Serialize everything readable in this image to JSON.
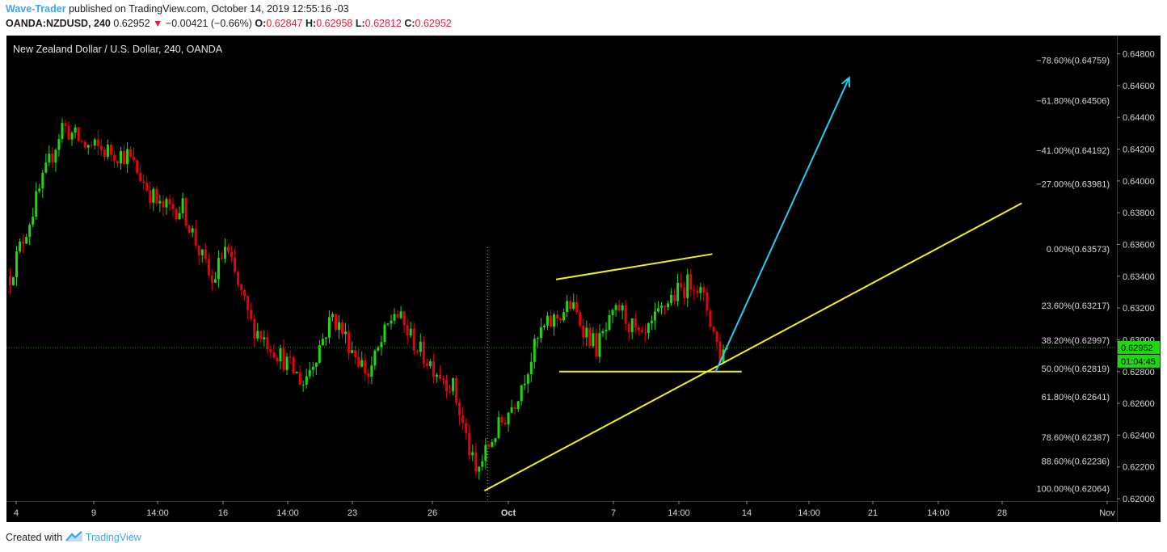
{
  "header": {
    "author": "Wave-Trader",
    "published_text": "published on TradingView.com, October 14, 2019 12:55:16 -03",
    "symbol": "OANDA:NZDUSD, 240",
    "last": "0.62952",
    "change": "−0.00421 (−0.66%)",
    "open_label": "O:",
    "open": "0.62847",
    "high_label": "H:",
    "high": "0.62958",
    "low_label": "L:",
    "low": "0.62812",
    "close_label": "C:",
    "close": "0.62952"
  },
  "footer": {
    "created_with": "Created with",
    "brand": "TradingView"
  },
  "colors": {
    "background": "#000000",
    "up": "#1ed80f",
    "down": "#e8000c",
    "trendline": "#f2f21a",
    "arrow": "#27cdf0",
    "price_line": "#0e9c0e",
    "axis_text": "#d8d8d8",
    "price_tag": "#1ed80f"
  },
  "chart_data": {
    "type": "candlestick",
    "title": "New Zealand Dollar / U.S. Dollar, 240, OANDA",
    "ylim": [
      0.61985,
      0.64915
    ],
    "y_ticks": [
      0.62,
      0.622,
      0.624,
      0.626,
      0.628,
      0.63,
      0.632,
      0.634,
      0.636,
      0.638,
      0.64,
      0.642,
      0.644,
      0.646,
      0.648
    ],
    "y_tick_labels": [
      "0.62000",
      "0.62200",
      "0.62400",
      "0.62600",
      "0.62800",
      "0.63000",
      "0.63200",
      "0.63400",
      "0.63600",
      "0.63800",
      "0.64000",
      "0.64200",
      "0.64400",
      "0.64600",
      "0.64800"
    ],
    "x_tick_labels": [
      "4",
      "9",
      "14:00",
      "16",
      "14:00",
      "23",
      "26",
      "Oct",
      "7",
      "14:00",
      "14",
      "14:00",
      "21",
      "14:00",
      "28",
      "Nov"
    ],
    "fib_levels": [
      {
        "label": "−78.60%(0.64759)",
        "price": 0.64759
      },
      {
        "label": "−61.80%(0.64506)",
        "price": 0.64506
      },
      {
        "label": "−41.00%(0.64192)",
        "price": 0.64192
      },
      {
        "label": "−27.00%(0.63981)",
        "price": 0.63981
      },
      {
        "label": "0.00%(0.63573)",
        "price": 0.63573
      },
      {
        "label": "23.60%(0.63217)",
        "price": 0.63217
      },
      {
        "label": "38.20%(0.62997)",
        "price": 0.62997
      },
      {
        "label": "50.00%(0.62819)",
        "price": 0.62819
      },
      {
        "label": "61.80%(0.62641)",
        "price": 0.62641
      },
      {
        "label": "78.60%(0.62387)",
        "price": 0.62387
      },
      {
        "label": "88.60%(0.62236)",
        "price": 0.62236
      },
      {
        "label": "100.00%(0.62064)",
        "price": 0.62064
      }
    ],
    "current_price": "0.62952",
    "countdown": "01:04:45",
    "anchors": [
      {
        "bar": 0,
        "price": 0.634
      },
      {
        "bar": 16,
        "price": 0.6435
      },
      {
        "bar": 23,
        "price": 0.6422
      },
      {
        "bar": 36,
        "price": 0.6416
      },
      {
        "bar": 46,
        "price": 0.6383
      },
      {
        "bar": 53,
        "price": 0.6383
      },
      {
        "bar": 62,
        "price": 0.6335
      },
      {
        "bar": 66,
        "price": 0.6358
      },
      {
        "bar": 74,
        "price": 0.631
      },
      {
        "bar": 83,
        "price": 0.629
      },
      {
        "bar": 90,
        "price": 0.6273
      },
      {
        "bar": 99,
        "price": 0.6315
      },
      {
        "bar": 110,
        "price": 0.6278
      },
      {
        "bar": 118,
        "price": 0.6318
      },
      {
        "bar": 126,
        "price": 0.6292
      },
      {
        "bar": 136,
        "price": 0.627
      },
      {
        "bar": 143,
        "price": 0.6215
      },
      {
        "bar": 148,
        "price": 0.6238
      },
      {
        "bar": 155,
        "price": 0.6262
      },
      {
        "bar": 163,
        "price": 0.6305
      },
      {
        "bar": 172,
        "price": 0.6322
      },
      {
        "bar": 180,
        "price": 0.6295
      },
      {
        "bar": 187,
        "price": 0.632
      },
      {
        "bar": 194,
        "price": 0.6298
      },
      {
        "bar": 202,
        "price": 0.6325
      },
      {
        "bar": 210,
        "price": 0.6338
      },
      {
        "bar": 214,
        "price": 0.632
      },
      {
        "bar": 218,
        "price": 0.629
      },
      {
        "bar": 220,
        "price": 0.62952
      }
    ],
    "drawings": {
      "channel_top": [
        [
          168,
          0.6338
        ],
        [
          216,
          0.6354
        ]
      ],
      "channel_bottom": [
        [
          169,
          0.628
        ],
        [
          225,
          0.628
        ]
      ],
      "support_line": [
        [
          146,
          0.6205
        ],
        [
          311,
          0.6386
        ]
      ],
      "projection_arrow": [
        [
          217,
          0.628
        ],
        [
          258,
          0.6465
        ]
      ]
    }
  }
}
